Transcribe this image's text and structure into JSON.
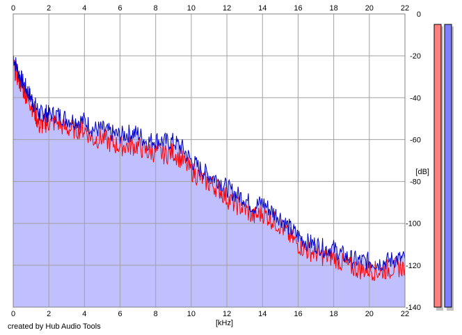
{
  "credit": "created by Hub Audio Tools",
  "chart_data": {
    "type": "area",
    "xlabel": "[kHz]",
    "ylabel": "[dB]",
    "xlim": [
      0,
      22
    ],
    "ylim": [
      -140,
      0
    ],
    "x_ticks": [
      0,
      2,
      4,
      6,
      8,
      10,
      12,
      14,
      16,
      18,
      20,
      22
    ],
    "y_ticks": [
      0,
      -20,
      -40,
      -60,
      -80,
      -100,
      -120,
      -140
    ],
    "grid": true,
    "series": [
      {
        "color": "#ff0000",
        "points": [
          [
            0,
            -25
          ],
          [
            0.25,
            -30
          ],
          [
            0.5,
            -35
          ],
          [
            0.75,
            -39
          ],
          [
            1,
            -43
          ],
          [
            1.25,
            -48
          ],
          [
            1.5,
            -54
          ],
          [
            1.75,
            -52
          ],
          [
            2,
            -52
          ],
          [
            2.5,
            -52
          ],
          [
            3,
            -55
          ],
          [
            3.5,
            -55
          ],
          [
            4,
            -55
          ],
          [
            4.5,
            -60
          ],
          [
            5,
            -59
          ],
          [
            5.5,
            -62
          ],
          [
            6,
            -63
          ],
          [
            6.5,
            -63
          ],
          [
            7,
            -63
          ],
          [
            7.5,
            -66
          ],
          [
            8,
            -66
          ],
          [
            8.5,
            -67
          ],
          [
            9,
            -66
          ],
          [
            9.5,
            -70
          ],
          [
            10,
            -75
          ],
          [
            10.5,
            -78
          ],
          [
            11,
            -81
          ],
          [
            11.5,
            -83
          ],
          [
            12,
            -88
          ],
          [
            12.5,
            -91
          ],
          [
            13,
            -93
          ],
          [
            13.5,
            -97
          ],
          [
            14,
            -95
          ],
          [
            14.5,
            -98
          ],
          [
            15,
            -101
          ],
          [
            15.5,
            -106
          ],
          [
            16,
            -110
          ],
          [
            16.5,
            -113
          ],
          [
            17,
            -114
          ],
          [
            17.5,
            -116
          ],
          [
            18,
            -116
          ],
          [
            18.5,
            -119
          ],
          [
            19,
            -121
          ],
          [
            19.5,
            -122
          ],
          [
            20,
            -122
          ],
          [
            20.5,
            -123
          ],
          [
            21,
            -122
          ],
          [
            21.5,
            -121
          ],
          [
            22,
            -121
          ]
        ]
      },
      {
        "color": "#0000c8",
        "points": [
          [
            0,
            -20
          ],
          [
            0.25,
            -27
          ],
          [
            0.5,
            -32
          ],
          [
            0.75,
            -36
          ],
          [
            1,
            -40
          ],
          [
            1.25,
            -44
          ],
          [
            1.5,
            -48
          ],
          [
            1.75,
            -47
          ],
          [
            2,
            -48
          ],
          [
            2.5,
            -48
          ],
          [
            3,
            -50
          ],
          [
            3.5,
            -51
          ],
          [
            4,
            -51
          ],
          [
            4.5,
            -55
          ],
          [
            5,
            -55
          ],
          [
            5.5,
            -57
          ],
          [
            6,
            -58
          ],
          [
            6.5,
            -57
          ],
          [
            7,
            -57
          ],
          [
            7.5,
            -61
          ],
          [
            8,
            -60
          ],
          [
            8.5,
            -61
          ],
          [
            9,
            -61
          ],
          [
            9.5,
            -64
          ],
          [
            10,
            -70
          ],
          [
            10.5,
            -74
          ],
          [
            11,
            -77
          ],
          [
            11.5,
            -79
          ],
          [
            12,
            -83
          ],
          [
            12.5,
            -86
          ],
          [
            13,
            -88
          ],
          [
            13.5,
            -92
          ],
          [
            14,
            -90
          ],
          [
            14.5,
            -94
          ],
          [
            15,
            -97
          ],
          [
            15.5,
            -102
          ],
          [
            16,
            -106
          ],
          [
            16.5,
            -109
          ],
          [
            17,
            -110
          ],
          [
            17.5,
            -112
          ],
          [
            18,
            -112
          ],
          [
            18.5,
            -115
          ],
          [
            19,
            -117
          ],
          [
            19.5,
            -118
          ],
          [
            20,
            -118
          ],
          [
            20.5,
            -119
          ],
          [
            21,
            -118
          ],
          [
            21.5,
            -117
          ],
          [
            22,
            -117
          ]
        ]
      }
    ],
    "fill_color": "#c0c0ff",
    "level_meters": [
      {
        "color": "#ff7f7f",
        "level_db": -5
      },
      {
        "color": "#7f7fff",
        "level_db": -5
      }
    ]
  }
}
